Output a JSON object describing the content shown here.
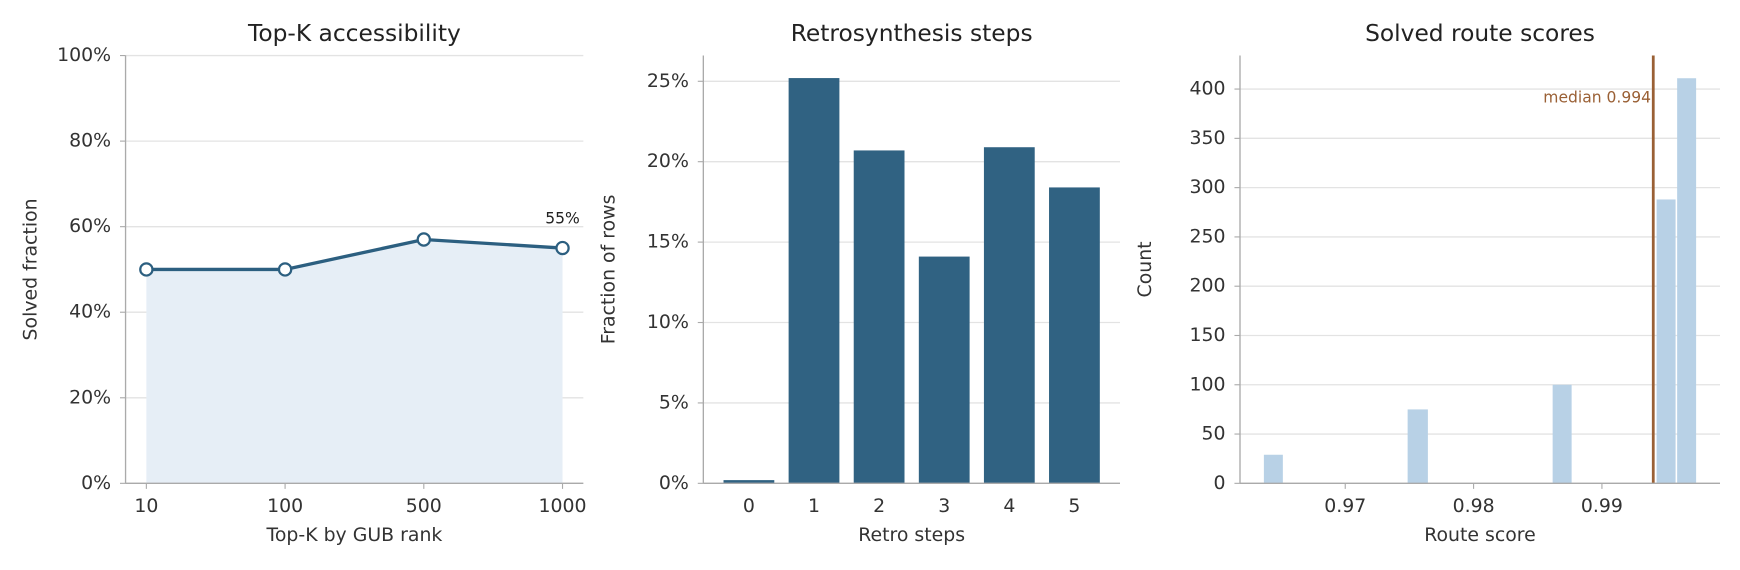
{
  "chart_data": [
    {
      "type": "line",
      "title": "Top-K accessibility",
      "x_label": "Top-K by GUB rank",
      "y_label": "Solved fraction",
      "categories": [
        "10",
        "100",
        "500",
        "1000"
      ],
      "values": [
        50,
        50,
        57,
        55
      ],
      "value_labels": [
        null,
        null,
        null,
        "55%"
      ],
      "color": "#2c5f80",
      "fill_color": "#e6eef6",
      "ylim": [
        0,
        100
      ],
      "yticks": [
        {
          "value": 0,
          "label": "0%"
        },
        {
          "value": 20,
          "label": "20%"
        },
        {
          "value": 40,
          "label": "40%"
        },
        {
          "value": 60,
          "label": "60%"
        },
        {
          "value": 80,
          "label": "80%"
        },
        {
          "value": 100,
          "label": "100%"
        }
      ],
      "grid": true
    },
    {
      "type": "bar",
      "title": "Retrosynthesis steps",
      "x_label": "Retro steps",
      "y_label": "Fraction of rows",
      "categories": [
        "0",
        "1",
        "2",
        "3",
        "4",
        "5"
      ],
      "values": [
        0.2,
        25.2,
        20.7,
        14.1,
        20.9,
        18.4
      ],
      "color": "#2c5f80",
      "ylim": [
        0,
        26.6
      ],
      "yticks": [
        {
          "value": 0,
          "label": "0%"
        },
        {
          "value": 5,
          "label": "5%"
        },
        {
          "value": 10,
          "label": "10%"
        },
        {
          "value": 15,
          "label": "15%"
        },
        {
          "value": 20,
          "label": "20%"
        },
        {
          "value": 25,
          "label": "25%"
        }
      ],
      "grid": true
    },
    {
      "type": "histogram",
      "title": "Solved route scores",
      "x_label": "Route score",
      "y_label": "Count",
      "bins": [
        0.9636,
        0.9652,
        0.9668,
        0.9684,
        0.97,
        0.9716,
        0.9732,
        0.9748,
        0.9765,
        0.9781,
        0.9797,
        0.9813,
        0.9829,
        0.9845,
        0.9861,
        0.9877,
        0.9893,
        0.9909,
        0.9925,
        0.9942,
        0.9958,
        0.9974
      ],
      "values": [
        29,
        0,
        0,
        0,
        0,
        0,
        0,
        75,
        0,
        0,
        0,
        0,
        0,
        0,
        100,
        0,
        0,
        0,
        0,
        288,
        411
      ],
      "color": "#b8d1e6",
      "median": 0.994,
      "median_label": "median 0.994",
      "median_color": "#9a6035",
      "xlim": [
        0.9618,
        0.9992
      ],
      "xticks": [
        0.97,
        0.98,
        0.99
      ],
      "ylim": [
        0,
        434
      ],
      "yticks": [
        0,
        50,
        100,
        150,
        200,
        250,
        300,
        350,
        400
      ],
      "grid": true
    }
  ]
}
